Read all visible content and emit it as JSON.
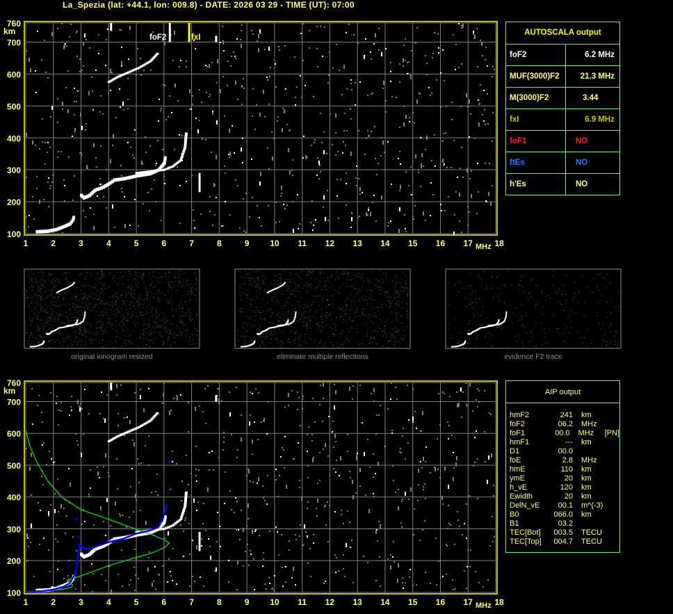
{
  "header": {
    "title": "La_Spezia (lat: +44.1, lon: 009.8) - DATE: 2026 03 29 - TIME (UT): 07:00"
  },
  "axes": {
    "y_unit": "km",
    "x_unit": "MHz",
    "y_ticks": [
      "760",
      "700",
      "600",
      "500",
      "400",
      "300",
      "200",
      "100"
    ],
    "y_tick_values": [
      760,
      700,
      600,
      500,
      400,
      300,
      200,
      100
    ],
    "x_ticks": [
      "1",
      "2",
      "3",
      "4",
      "5",
      "6",
      "7",
      "8",
      "9",
      "10",
      "11",
      "12",
      "13",
      "14",
      "15",
      "16",
      "17",
      "18"
    ]
  },
  "markers": {
    "foF2": {
      "label": "foF2",
      "freq_mhz": 6.2
    },
    "fxI": {
      "label": "fxI",
      "freq_mhz": 6.9
    }
  },
  "autoscala": {
    "title": "AUTOSCALA output",
    "rows": [
      {
        "key": "foF2",
        "value": "6.2 MHz",
        "color": "#ffffff"
      },
      {
        "key": "MUF(3000)F2",
        "value": "21.3 MHz",
        "color": "#ffff80"
      },
      {
        "key": "M(3000)F2",
        "value": "3.44",
        "color": "#ffff80"
      },
      {
        "key": "fxI",
        "value": "6.9 MHz",
        "color": "#c8c800"
      },
      {
        "key": "foF1",
        "value": "NO",
        "color": "#ff2020"
      },
      {
        "key": "ftEs",
        "value": "NO",
        "color": "#2080ff"
      },
      {
        "key": "h'Es",
        "value": "NO",
        "color": "#ffff80"
      }
    ]
  },
  "thumbnails": [
    {
      "caption": "original ionogram resized"
    },
    {
      "caption": "eliminate multiple reflections"
    },
    {
      "caption": "evidence F2 trace"
    }
  ],
  "aip": {
    "title": "AIP output",
    "rows": [
      [
        "hmF2",
        "241",
        "km",
        ""
      ],
      [
        "foF2",
        "06.2",
        "MHz",
        ""
      ],
      [
        "foF1",
        "00.0",
        "MHz",
        "[PN]"
      ],
      [
        "hmF1",
        "---",
        "km",
        ""
      ],
      [
        "D1",
        "00.0",
        "",
        ""
      ],
      [
        "foE",
        "2.8",
        "MHz",
        ""
      ],
      [
        "hmE",
        "110",
        "km",
        ""
      ],
      [
        "ymE",
        "20",
        "km",
        ""
      ],
      [
        "h_vE",
        "120",
        "km",
        ""
      ],
      [
        "Ewidth",
        "20",
        "km",
        ""
      ],
      [
        "DelN_vE",
        "00.1",
        "m^(-3)",
        ""
      ],
      [
        "B0",
        "066.0",
        "km",
        ""
      ],
      [
        "B1",
        "03.2",
        "",
        ""
      ],
      [
        "TEC[Bot]",
        "003.5",
        "TECU",
        ""
      ],
      [
        "TEC[Top]",
        "004.7",
        "TECU",
        ""
      ]
    ]
  },
  "chart_data": {
    "type": "scatter",
    "xlim": [
      1,
      18
    ],
    "ylim": [
      100,
      760
    ],
    "xlabel": "MHz",
    "ylabel": "km",
    "grid": true,
    "colors": {
      "axis": "#ffff00",
      "grid": "#808080",
      "echo": "#ffffff",
      "aip_trace": "#0000ff",
      "profile": "#00e000"
    },
    "o_trace_E": [
      [
        1.4,
        108
      ],
      [
        1.8,
        110
      ],
      [
        2.1,
        115
      ],
      [
        2.4,
        125
      ],
      [
        2.6,
        133
      ],
      [
        2.7,
        145
      ],
      [
        2.75,
        160
      ]
    ],
    "o_trace_F": [
      [
        3.0,
        222
      ],
      [
        3.1,
        214
      ],
      [
        3.3,
        222
      ],
      [
        3.5,
        238
      ],
      [
        3.8,
        248
      ],
      [
        4.0,
        258
      ],
      [
        4.2,
        270
      ],
      [
        4.6,
        275
      ],
      [
        5.0,
        283
      ],
      [
        5.5,
        290
      ],
      [
        5.8,
        302
      ],
      [
        6.0,
        322
      ],
      [
        6.05,
        345
      ]
    ],
    "x_trace_F": [
      [
        5.0,
        290
      ],
      [
        5.5,
        295
      ],
      [
        6.0,
        300
      ],
      [
        6.3,
        310
      ],
      [
        6.6,
        330
      ],
      [
        6.75,
        370
      ],
      [
        6.8,
        420
      ]
    ],
    "multiple_reflection": [
      [
        4.0,
        575
      ],
      [
        4.3,
        590
      ],
      [
        4.7,
        605
      ],
      [
        5.1,
        620
      ],
      [
        5.5,
        640
      ],
      [
        5.8,
        668
      ]
    ],
    "aip_trace": [
      [
        1.0,
        103
      ],
      [
        1.6,
        104
      ],
      [
        2.0,
        109
      ],
      [
        2.4,
        119
      ],
      [
        2.6,
        130
      ],
      [
        2.7,
        145
      ],
      [
        2.8,
        160
      ],
      [
        2.95,
        252
      ],
      [
        3.1,
        238
      ],
      [
        3.35,
        238
      ],
      [
        3.6,
        246
      ],
      [
        4.0,
        258
      ],
      [
        4.5,
        268
      ],
      [
        5.0,
        285
      ],
      [
        5.5,
        295
      ],
      [
        5.8,
        305
      ],
      [
        5.95,
        330
      ],
      [
        6.05,
        355
      ],
      [
        6.1,
        378
      ]
    ],
    "aip_outliers": [
      [
        2.85,
        330
      ],
      [
        2.9,
        272
      ],
      [
        6.15,
        410
      ],
      [
        6.2,
        510
      ]
    ],
    "profile": [
      [
        1.0,
        101
      ],
      [
        1.5,
        102
      ],
      [
        2.0,
        107
      ],
      [
        2.4,
        111
      ],
      [
        2.65,
        116
      ],
      [
        2.7,
        124
      ],
      [
        2.6,
        130
      ],
      [
        2.55,
        140
      ],
      [
        3.0,
        152
      ],
      [
        4.0,
        184
      ],
      [
        5.0,
        210
      ],
      [
        5.5,
        222
      ],
      [
        6.0,
        240
      ],
      [
        6.2,
        255
      ],
      [
        6.0,
        266
      ],
      [
        5.5,
        284
      ],
      [
        5.0,
        298
      ],
      [
        4.0,
        330
      ],
      [
        3.0,
        360
      ],
      [
        2.3,
        400
      ],
      [
        1.8,
        450
      ],
      [
        1.4,
        510
      ],
      [
        1.15,
        560
      ],
      [
        1.0,
        610
      ]
    ]
  }
}
